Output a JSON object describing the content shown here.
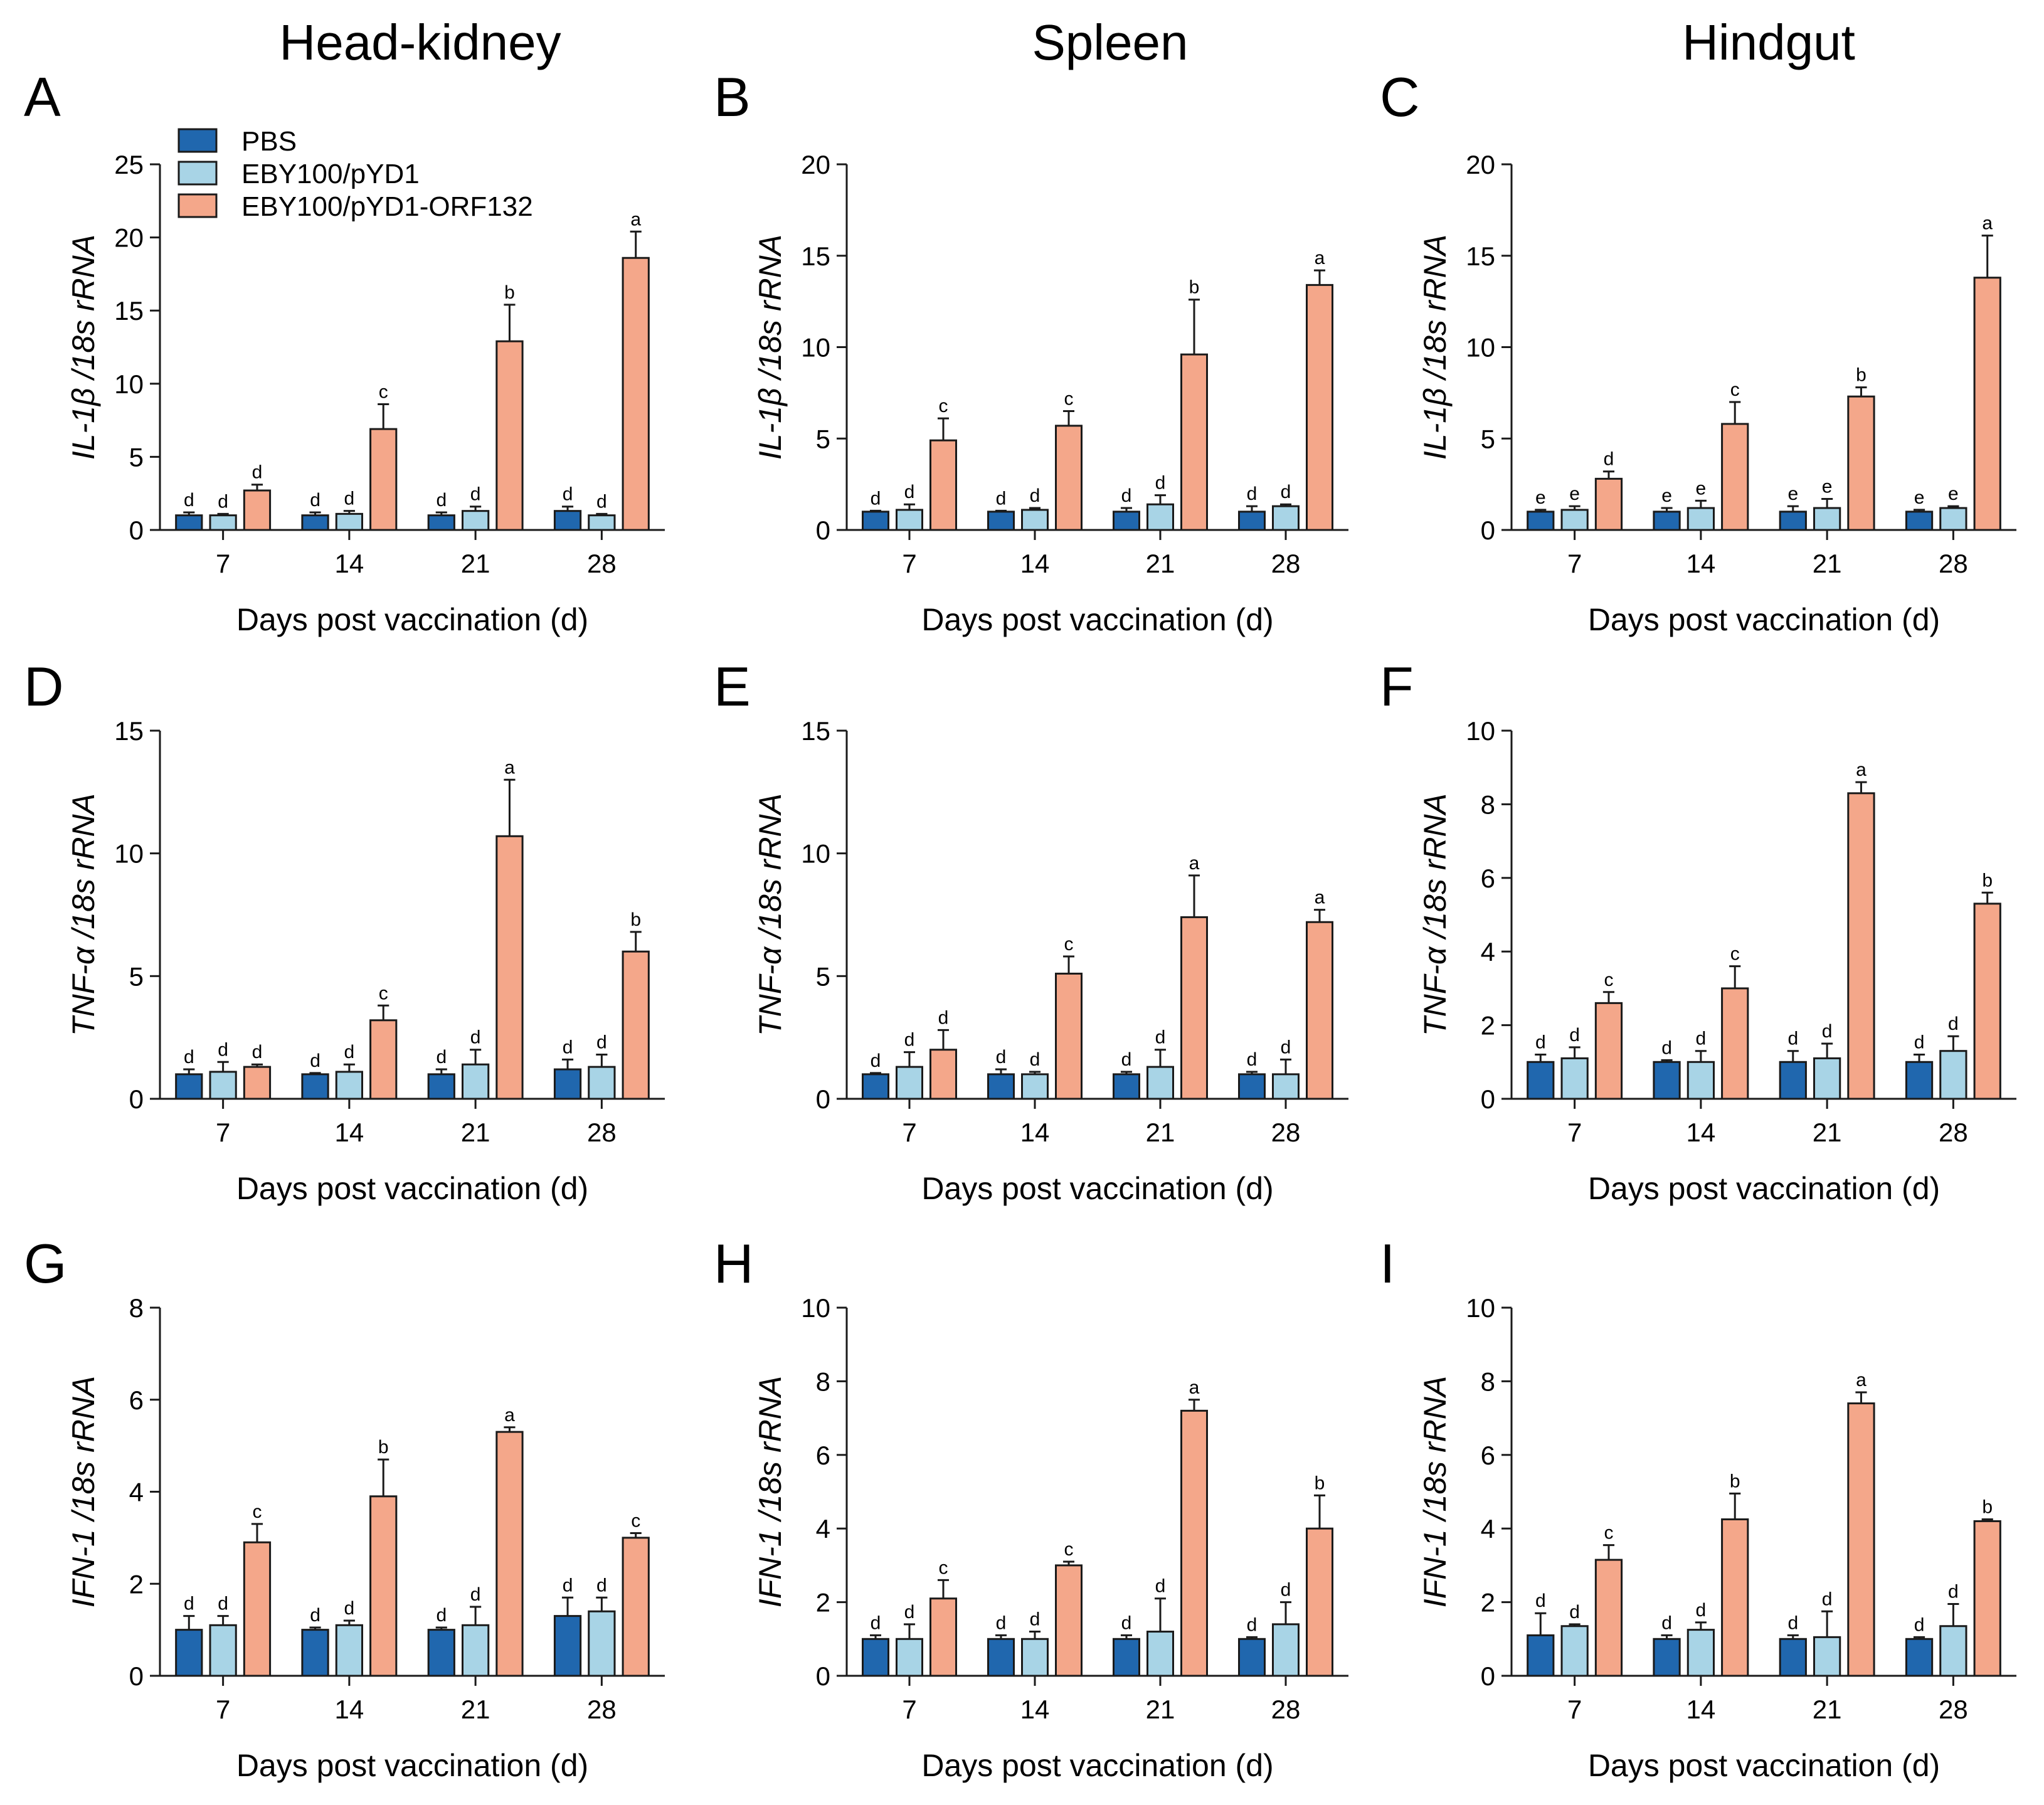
{
  "figure": {
    "column_titles": [
      "Head-kidney",
      "Spleen",
      "Hindgut"
    ],
    "legend": [
      "PBS",
      "EBY100/pYD1",
      "EBY100/pYD1-ORF132"
    ],
    "colors": {
      "PBS": "#2067ae",
      "EBY100/pYD1": "#a8d4e6",
      "EBY100/pYD1-ORF132": "#f4a78a",
      "stroke": "#1a1a1a"
    }
  },
  "chart_data": [
    {
      "panel": "A",
      "type": "bar",
      "title": "Head-kidney",
      "xlabel": "Days post vaccination (d)",
      "ylabel": "IL-1β /18s rRNA",
      "categories": [
        "7",
        "14",
        "21",
        "28"
      ],
      "ylim": [
        0,
        25
      ],
      "yticks": [
        0,
        5,
        10,
        15,
        20,
        25
      ],
      "series": [
        {
          "name": "PBS",
          "values": [
            1.0,
            1.0,
            1.0,
            1.3
          ],
          "errors": [
            0.2,
            0.2,
            0.2,
            0.3
          ],
          "labels": [
            "d",
            "d",
            "d",
            "d"
          ]
        },
        {
          "name": "EBY100/pYD1",
          "values": [
            1.0,
            1.1,
            1.3,
            1.0
          ],
          "errors": [
            0.1,
            0.2,
            0.3,
            0.1
          ],
          "labels": [
            "d",
            "d",
            "d",
            "d"
          ]
        },
        {
          "name": "EBY100/pYD1-ORF132",
          "values": [
            2.7,
            6.9,
            12.9,
            18.6
          ],
          "errors": [
            0.4,
            1.7,
            2.5,
            1.8
          ],
          "labels": [
            "d",
            "c",
            "b",
            "a"
          ]
        }
      ]
    },
    {
      "panel": "B",
      "type": "bar",
      "title": "Spleen",
      "xlabel": "Days post vaccination (d)",
      "ylabel": "IL-1β /18s rRNA",
      "categories": [
        "7",
        "14",
        "21",
        "28"
      ],
      "ylim": [
        0,
        20
      ],
      "yticks": [
        0,
        5,
        10,
        15,
        20
      ],
      "series": [
        {
          "name": "PBS",
          "values": [
            1.0,
            1.0,
            1.0,
            1.0
          ],
          "errors": [
            0.05,
            0.05,
            0.2,
            0.3
          ],
          "labels": [
            "d",
            "d",
            "d",
            "d"
          ]
        },
        {
          "name": "EBY100/pYD1",
          "values": [
            1.1,
            1.1,
            1.4,
            1.3
          ],
          "errors": [
            0.3,
            0.1,
            0.5,
            0.1
          ],
          "labels": [
            "d",
            "d",
            "d",
            "d"
          ]
        },
        {
          "name": "EBY100/pYD1-ORF132",
          "values": [
            4.9,
            5.7,
            9.6,
            13.4
          ],
          "errors": [
            1.2,
            0.8,
            3.0,
            0.8
          ],
          "labels": [
            "c",
            "c",
            "b",
            "a"
          ]
        }
      ]
    },
    {
      "panel": "C",
      "type": "bar",
      "title": "Hindgut",
      "xlabel": "Days post vaccination (d)",
      "ylabel": "IL-1β /18s rRNA",
      "categories": [
        "7",
        "14",
        "21",
        "28"
      ],
      "ylim": [
        0,
        20
      ],
      "yticks": [
        0,
        5,
        10,
        15,
        20
      ],
      "series": [
        {
          "name": "PBS",
          "values": [
            1.0,
            1.0,
            1.0,
            1.0
          ],
          "errors": [
            0.1,
            0.2,
            0.3,
            0.1
          ],
          "labels": [
            "e",
            "e",
            "e",
            "e"
          ]
        },
        {
          "name": "EBY100/pYD1",
          "values": [
            1.1,
            1.2,
            1.2,
            1.2
          ],
          "errors": [
            0.2,
            0.4,
            0.5,
            0.1
          ],
          "labels": [
            "e",
            "e",
            "e",
            "e"
          ]
        },
        {
          "name": "EBY100/pYD1-ORF132",
          "values": [
            2.8,
            5.8,
            7.3,
            13.8
          ],
          "errors": [
            0.4,
            1.2,
            0.5,
            2.3
          ],
          "labels": [
            "d",
            "c",
            "b",
            "a"
          ]
        }
      ]
    },
    {
      "panel": "D",
      "type": "bar",
      "title": "",
      "xlabel": "Days post vaccination (d)",
      "ylabel": "TNF-α /18s rRNA",
      "categories": [
        "7",
        "14",
        "21",
        "28"
      ],
      "ylim": [
        0,
        15
      ],
      "yticks": [
        0,
        5,
        10,
        15
      ],
      "series": [
        {
          "name": "PBS",
          "values": [
            1.0,
            1.0,
            1.0,
            1.2
          ],
          "errors": [
            0.2,
            0.05,
            0.2,
            0.4
          ],
          "labels": [
            "d",
            "d",
            "d",
            "d"
          ]
        },
        {
          "name": "EBY100/pYD1",
          "values": [
            1.1,
            1.1,
            1.4,
            1.3
          ],
          "errors": [
            0.4,
            0.3,
            0.6,
            0.5
          ],
          "labels": [
            "d",
            "d",
            "d",
            "d"
          ]
        },
        {
          "name": "EBY100/pYD1-ORF132",
          "values": [
            1.3,
            3.2,
            10.7,
            6.0
          ],
          "errors": [
            0.1,
            0.6,
            2.3,
            0.8
          ],
          "labels": [
            "d",
            "c",
            "a",
            "b"
          ]
        }
      ]
    },
    {
      "panel": "E",
      "type": "bar",
      "title": "",
      "xlabel": "Days post vaccination (d)",
      "ylabel": "TNF-α /18s rRNA",
      "categories": [
        "7",
        "14",
        "21",
        "28"
      ],
      "ylim": [
        0,
        15
      ],
      "yticks": [
        0,
        5,
        10,
        15
      ],
      "series": [
        {
          "name": "PBS",
          "values": [
            1.0,
            1.0,
            1.0,
            1.0
          ],
          "errors": [
            0.05,
            0.2,
            0.1,
            0.1
          ],
          "labels": [
            "d",
            "d",
            "d",
            "d"
          ]
        },
        {
          "name": "EBY100/pYD1",
          "values": [
            1.3,
            1.0,
            1.3,
            1.0
          ],
          "errors": [
            0.6,
            0.1,
            0.7,
            0.6
          ],
          "labels": [
            "d",
            "d",
            "d",
            "d"
          ]
        },
        {
          "name": "EBY100/pYD1-ORF132",
          "values": [
            2.0,
            5.1,
            7.4,
            7.2
          ],
          "errors": [
            0.8,
            0.7,
            1.7,
            0.5
          ],
          "labels": [
            "d",
            "c",
            "a",
            "a"
          ]
        }
      ]
    },
    {
      "panel": "F",
      "type": "bar",
      "title": "",
      "xlabel": "Days post vaccination (d)",
      "ylabel": "TNF-α /18s rRNA",
      "categories": [
        "7",
        "14",
        "21",
        "28"
      ],
      "ylim": [
        0,
        10
      ],
      "yticks": [
        0,
        2,
        4,
        6,
        8,
        10
      ],
      "series": [
        {
          "name": "PBS",
          "values": [
            1.0,
            1.0,
            1.0,
            1.0
          ],
          "errors": [
            0.2,
            0.05,
            0.3,
            0.2
          ],
          "labels": [
            "d",
            "d",
            "d",
            "d"
          ]
        },
        {
          "name": "EBY100/pYD1",
          "values": [
            1.1,
            1.0,
            1.1,
            1.3
          ],
          "errors": [
            0.3,
            0.3,
            0.4,
            0.4
          ],
          "labels": [
            "d",
            "d",
            "d",
            "d"
          ]
        },
        {
          "name": "EBY100/pYD1-ORF132",
          "values": [
            2.6,
            3.0,
            8.3,
            5.3
          ],
          "errors": [
            0.3,
            0.6,
            0.3,
            0.3
          ],
          "labels": [
            "c",
            "c",
            "a",
            "b"
          ]
        }
      ]
    },
    {
      "panel": "G",
      "type": "bar",
      "title": "",
      "xlabel": "Days post vaccination (d)",
      "ylabel": "IFN-1 /18s rRNA",
      "categories": [
        "7",
        "14",
        "21",
        "28"
      ],
      "ylim": [
        0,
        8
      ],
      "yticks": [
        0,
        2,
        4,
        6,
        8
      ],
      "series": [
        {
          "name": "PBS",
          "values": [
            1.0,
            1.0,
            1.0,
            1.3
          ],
          "errors": [
            0.3,
            0.05,
            0.05,
            0.4
          ],
          "labels": [
            "d",
            "d",
            "d",
            "d"
          ]
        },
        {
          "name": "EBY100/pYD1",
          "values": [
            1.1,
            1.1,
            1.1,
            1.4
          ],
          "errors": [
            0.2,
            0.1,
            0.4,
            0.3
          ],
          "labels": [
            "d",
            "d",
            "d",
            "d"
          ]
        },
        {
          "name": "EBY100/pYD1-ORF132",
          "values": [
            2.9,
            3.9,
            5.3,
            3.0
          ],
          "errors": [
            0.4,
            0.8,
            0.1,
            0.1
          ],
          "labels": [
            "c",
            "b",
            "a",
            "c"
          ]
        }
      ]
    },
    {
      "panel": "H",
      "type": "bar",
      "title": "",
      "xlabel": "Days post vaccination (d)",
      "ylabel": "IFN-1 /18s rRNA",
      "categories": [
        "7",
        "14",
        "21",
        "28"
      ],
      "ylim": [
        0,
        10
      ],
      "yticks": [
        0,
        2,
        4,
        6,
        8,
        10
      ],
      "series": [
        {
          "name": "PBS",
          "values": [
            1.0,
            1.0,
            1.0,
            1.0
          ],
          "errors": [
            0.1,
            0.1,
            0.1,
            0.05
          ],
          "labels": [
            "d",
            "d",
            "d",
            "d"
          ]
        },
        {
          "name": "EBY100/pYD1",
          "values": [
            1.0,
            1.0,
            1.2,
            1.4
          ],
          "errors": [
            0.4,
            0.2,
            0.9,
            0.6
          ],
          "labels": [
            "d",
            "d",
            "d",
            "d"
          ]
        },
        {
          "name": "EBY100/pYD1-ORF132",
          "values": [
            2.1,
            3.0,
            7.2,
            4.0
          ],
          "errors": [
            0.5,
            0.1,
            0.3,
            0.9
          ],
          "labels": [
            "c",
            "c",
            "a",
            "b"
          ]
        }
      ]
    },
    {
      "panel": "I",
      "type": "bar",
      "title": "",
      "xlabel": "Days post vaccination (d)",
      "ylabel": "IFN-1 /18s rRNA",
      "categories": [
        "7",
        "14",
        "21",
        "28"
      ],
      "ylim": [
        0,
        10
      ],
      "yticks": [
        0,
        2,
        4,
        6,
        8,
        10
      ],
      "series": [
        {
          "name": "PBS",
          "values": [
            1.1,
            1.0,
            1.0,
            1.0
          ],
          "errors": [
            0.6,
            0.1,
            0.1,
            0.05
          ],
          "labels": [
            "d",
            "d",
            "d",
            "d"
          ]
        },
        {
          "name": "EBY100/pYD1",
          "values": [
            1.35,
            1.25,
            1.05,
            1.35
          ],
          "errors": [
            0.05,
            0.2,
            0.7,
            0.6
          ],
          "labels": [
            "d",
            "d",
            "d",
            "d"
          ]
        },
        {
          "name": "EBY100/pYD1-ORF132",
          "values": [
            3.15,
            4.25,
            7.4,
            4.2
          ],
          "errors": [
            0.4,
            0.7,
            0.3,
            0.05
          ],
          "labels": [
            "c",
            "b",
            "a",
            "b"
          ]
        }
      ]
    }
  ]
}
